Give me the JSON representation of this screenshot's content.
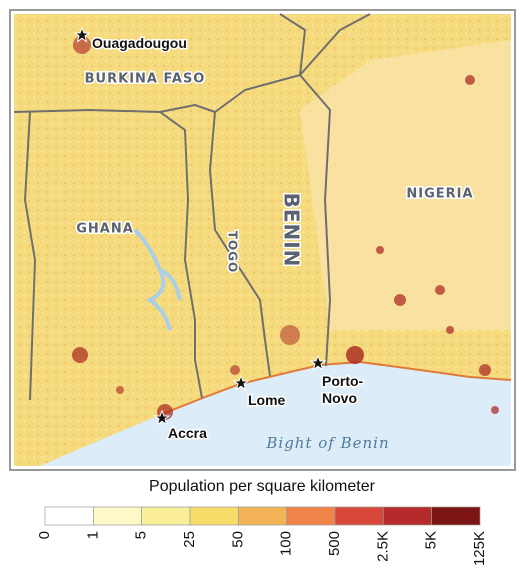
{
  "map": {
    "countries": [
      {
        "label": "BURKINA FASO"
      },
      {
        "label": "GHANA"
      },
      {
        "label": "TOGO"
      },
      {
        "label": "BENIN"
      },
      {
        "label": "NIGERIA"
      }
    ],
    "cities": [
      {
        "label": [
          "Ouagadougou"
        ]
      },
      {
        "label": [
          "Accra"
        ]
      },
      {
        "label": [
          "Lome"
        ]
      },
      {
        "label": [
          "Porto-",
          "Novo"
        ]
      }
    ],
    "water_label": "Bight of Benin"
  },
  "legend": {
    "title": "Population per square kilometer",
    "labels": [
      "0",
      "1",
      "5",
      "25",
      "50",
      "100",
      "500",
      "2.5K",
      "5K",
      "125K"
    ],
    "colors": [
      "#ffffff",
      "#fdf8c8",
      "#fbef9a",
      "#f7dc6a",
      "#f4b356",
      "#ef8348",
      "#d9473a",
      "#b52a2a",
      "#7d1414"
    ]
  }
}
